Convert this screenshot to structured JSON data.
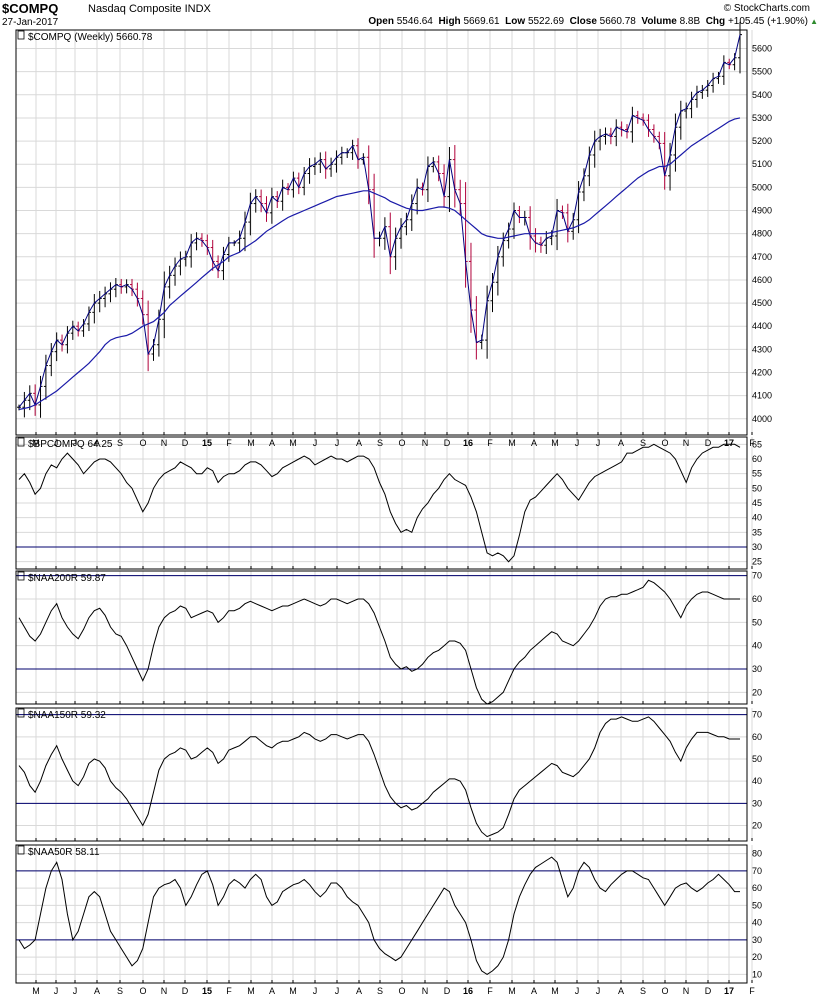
{
  "header": {
    "symbol": "$COMPQ",
    "name": "Nasdaq Composite INDX",
    "date": "27-Jan-2017",
    "copyright": "© StockCharts.com",
    "open_label": "Open",
    "open": "5546.64",
    "high_label": "High",
    "high": "5669.61",
    "low_label": "Low",
    "low": "5522.69",
    "close_label": "Close",
    "close": "5660.78",
    "volume_label": "Volume",
    "volume": "8.8B",
    "chg_label": "Chg",
    "chg": "+105.45 (+1.90%)",
    "up_arrow_icon": "up-triangle-icon"
  },
  "colors": {
    "price": "#000000",
    "close_line": "#00007f",
    "moving_average": "#1a1aa8",
    "down_bar": "#b0003a",
    "grid": "#d9d9d9",
    "reference_line": "#00006e",
    "up_arrow": "#2e8b2e"
  },
  "chart_data": [
    {
      "type": "line",
      "panel": "price",
      "label": "$COMPQ (Weekly) 5660.78",
      "x_tick_labels": [
        "M",
        "J",
        "J",
        "A",
        "S",
        "O",
        "N",
        "D",
        "15",
        "F",
        "M",
        "A",
        "M",
        "J",
        "J",
        "A",
        "S",
        "O",
        "N",
        "D",
        "16",
        "F",
        "M",
        "A",
        "M",
        "J",
        "J",
        "A",
        "S",
        "O",
        "N",
        "D",
        "17",
        "F"
      ],
      "y_ticks": [
        4000,
        4100,
        4200,
        4300,
        4400,
        4500,
        4600,
        4700,
        4800,
        4900,
        5000,
        5100,
        5200,
        5300,
        5400,
        5500,
        5600
      ],
      "ylim": [
        3930,
        5680
      ],
      "grid": true,
      "series": [
        {
          "values": [
            4050,
            4080,
            4110,
            4060,
            4140,
            4230,
            4290,
            4340,
            4320,
            4370,
            4400,
            4380,
            4410,
            4460,
            4500,
            4520,
            4540,
            4560,
            4580,
            4570,
            4580,
            4560,
            4520,
            4450,
            4280,
            4320,
            4430,
            4570,
            4620,
            4660,
            4690,
            4700,
            4760,
            4780,
            4770,
            4740,
            4680,
            4640,
            4710,
            4760,
            4760,
            4780,
            4850,
            4930,
            4960,
            4930,
            4890,
            4960,
            4940,
            5000,
            4990,
            5040,
            5000,
            5060,
            5090,
            5100,
            5120,
            5080,
            5100,
            5130,
            5150,
            5150,
            5180,
            5120,
            5130,
            4990,
            4780,
            4780,
            4830,
            4700,
            4780,
            4830,
            4860,
            4930,
            5000,
            4990,
            5090,
            5110,
            5060,
            4960,
            5120,
            4990,
            4930,
            4680,
            4470,
            4330,
            4340,
            4510,
            4590,
            4700,
            4770,
            4820,
            4900,
            4870,
            4870,
            4790,
            4760,
            4750,
            4780,
            4790,
            4900,
            4890,
            4810,
            4860,
            4980,
            5050,
            5140,
            5200,
            5220,
            5230,
            5220,
            5260,
            5250,
            5240,
            5310,
            5300,
            5290,
            5250,
            5220,
            5190,
            5050,
            5140,
            5260,
            5330,
            5340,
            5380,
            5410,
            5420,
            5440,
            5470,
            5480,
            5540,
            5530,
            5560,
            5660
          ]
        },
        {
          "values": [
            4040,
            4045,
            4050,
            4060,
            4075,
            4090,
            4105,
            4120,
            4140,
            4160,
            4180,
            4200,
            4220,
            4240,
            4265,
            4290,
            4320,
            4340,
            4350,
            4355,
            4360,
            4370,
            4385,
            4400,
            4410,
            4420,
            4440,
            4460,
            4490,
            4510,
            4530,
            4550,
            4570,
            4590,
            4610,
            4630,
            4650,
            4665,
            4680,
            4700,
            4710,
            4720,
            4740,
            4755,
            4770,
            4790,
            4810,
            4825,
            4840,
            4855,
            4870,
            4880,
            4890,
            4900,
            4910,
            4920,
            4930,
            4940,
            4950,
            4960,
            4965,
            4970,
            4975,
            4980,
            4985,
            4985,
            4975,
            4965,
            4955,
            4940,
            4930,
            4920,
            4910,
            4905,
            4900,
            4900,
            4905,
            4910,
            4915,
            4915,
            4910,
            4900,
            4880,
            4860,
            4840,
            4820,
            4800,
            4790,
            4785,
            4780,
            4780,
            4785,
            4790,
            4795,
            4800,
            4800,
            4800,
            4800,
            4800,
            4805,
            4810,
            4815,
            4820,
            4825,
            4835,
            4845,
            4860,
            4880,
            4900,
            4920,
            4940,
            4960,
            4980,
            5000,
            5020,
            5040,
            5055,
            5070,
            5080,
            5090,
            5090,
            5100,
            5120,
            5140,
            5160,
            5180,
            5195,
            5210,
            5225,
            5240,
            5255,
            5270,
            5285,
            5295,
            5300
          ]
        }
      ]
    },
    {
      "type": "line",
      "panel": "indicator",
      "label": "$BPCOMPQ 64.25",
      "y_ticks": [
        25,
        30,
        35,
        40,
        45,
        50,
        55,
        60,
        65
      ],
      "ylim": [
        22.5,
        67.5
      ],
      "reference_lines": [
        30
      ],
      "grid": true,
      "values": [
        53,
        55,
        52,
        48,
        50,
        55,
        58,
        57,
        60,
        62,
        60,
        58,
        55,
        57,
        59,
        60,
        60,
        59,
        57,
        55,
        52,
        50,
        46,
        42,
        45,
        50,
        53,
        55,
        56,
        57,
        59,
        58,
        57,
        55,
        55,
        57,
        56,
        52,
        54,
        55,
        55,
        56,
        58,
        59,
        59,
        58,
        56,
        54,
        55,
        57,
        58,
        59,
        60,
        61,
        60,
        58,
        59,
        60,
        61,
        60,
        60,
        59,
        60,
        61,
        61,
        60,
        57,
        52,
        48,
        42,
        38,
        35,
        36,
        35,
        40,
        43,
        45,
        48,
        50,
        53,
        55,
        53,
        52,
        51,
        47,
        42,
        35,
        28,
        27,
        28,
        27,
        25,
        27,
        34,
        42,
        46,
        47,
        49,
        51,
        53,
        55,
        53,
        50,
        48,
        46,
        49,
        52,
        54,
        55,
        56,
        57,
        58,
        59,
        62,
        62,
        63,
        64,
        64,
        65,
        64,
        63,
        62,
        60,
        56,
        52,
        57,
        60,
        62,
        63,
        64,
        64,
        65,
        65,
        65,
        64
      ]
    },
    {
      "type": "line",
      "panel": "indicator",
      "label": "$NAA200R 59.87",
      "y_ticks": [
        20,
        30,
        40,
        50,
        60,
        70
      ],
      "ylim": [
        15,
        72
      ],
      "reference_lines": [
        30,
        70
      ],
      "grid": true,
      "values": [
        52,
        48,
        44,
        42,
        45,
        50,
        55,
        58,
        52,
        48,
        45,
        43,
        47,
        52,
        55,
        56,
        53,
        48,
        45,
        44,
        40,
        35,
        30,
        25,
        30,
        40,
        48,
        52,
        54,
        55,
        57,
        56,
        52,
        53,
        54,
        55,
        54,
        50,
        52,
        55,
        55,
        56,
        58,
        59,
        58,
        57,
        56,
        55,
        56,
        57,
        57,
        58,
        59,
        60,
        59,
        58,
        57,
        58,
        60,
        60,
        59,
        58,
        59,
        60,
        60,
        58,
        54,
        48,
        42,
        35,
        32,
        30,
        31,
        29,
        30,
        32,
        35,
        37,
        38,
        40,
        42,
        42,
        41,
        38,
        30,
        22,
        17,
        15,
        16,
        18,
        20,
        25,
        30,
        33,
        35,
        38,
        40,
        42,
        44,
        46,
        45,
        42,
        41,
        40,
        42,
        45,
        48,
        52,
        57,
        60,
        61,
        61,
        62,
        62,
        63,
        64,
        65,
        68,
        67,
        65,
        63,
        60,
        56,
        52,
        57,
        60,
        62,
        63,
        63,
        62,
        61,
        60,
        60,
        60,
        60
      ]
    },
    {
      "type": "line",
      "panel": "indicator",
      "label": "$NAA150R 59.32",
      "y_ticks": [
        20,
        30,
        40,
        50,
        60,
        70
      ],
      "ylim": [
        13,
        73
      ],
      "reference_lines": [
        30,
        70
      ],
      "grid": true,
      "values": [
        47,
        44,
        38,
        35,
        40,
        47,
        52,
        56,
        50,
        45,
        40,
        38,
        42,
        48,
        50,
        49,
        46,
        40,
        37,
        35,
        32,
        28,
        24,
        20,
        25,
        35,
        45,
        50,
        52,
        53,
        55,
        54,
        50,
        51,
        53,
        55,
        53,
        48,
        50,
        54,
        55,
        56,
        58,
        60,
        60,
        58,
        56,
        55,
        57,
        58,
        58,
        59,
        60,
        62,
        61,
        59,
        58,
        59,
        61,
        61,
        60,
        59,
        60,
        61,
        61,
        58,
        52,
        45,
        38,
        33,
        30,
        28,
        29,
        27,
        28,
        30,
        32,
        35,
        37,
        39,
        41,
        41,
        40,
        36,
        28,
        21,
        17,
        15,
        16,
        17,
        19,
        25,
        32,
        36,
        38,
        40,
        42,
        44,
        46,
        48,
        47,
        44,
        43,
        42,
        44,
        47,
        50,
        55,
        62,
        66,
        68,
        68,
        69,
        68,
        67,
        67,
        68,
        69,
        67,
        64,
        61,
        58,
        53,
        49,
        55,
        59,
        62,
        62,
        62,
        61,
        60,
        60,
        59,
        59,
        59
      ]
    },
    {
      "type": "line",
      "panel": "indicator",
      "label": "$NAA50R 58.11",
      "y_ticks": [
        10,
        20,
        30,
        40,
        50,
        60,
        70,
        80
      ],
      "ylim": [
        5,
        85
      ],
      "reference_lines": [
        30,
        70
      ],
      "grid": true,
      "values": [
        30,
        25,
        27,
        30,
        45,
        60,
        70,
        75,
        65,
        45,
        30,
        35,
        45,
        55,
        58,
        55,
        45,
        35,
        30,
        25,
        20,
        15,
        18,
        25,
        40,
        55,
        60,
        62,
        63,
        65,
        60,
        50,
        55,
        62,
        68,
        70,
        62,
        50,
        55,
        62,
        65,
        63,
        60,
        65,
        68,
        65,
        55,
        50,
        52,
        58,
        60,
        62,
        63,
        65,
        62,
        58,
        55,
        58,
        63,
        63,
        60,
        55,
        52,
        50,
        45,
        40,
        30,
        25,
        22,
        20,
        18,
        20,
        25,
        30,
        35,
        40,
        45,
        50,
        55,
        60,
        58,
        50,
        45,
        40,
        30,
        18,
        12,
        10,
        12,
        15,
        20,
        30,
        45,
        55,
        62,
        68,
        72,
        74,
        76,
        78,
        75,
        65,
        55,
        60,
        70,
        75,
        72,
        65,
        60,
        58,
        62,
        65,
        68,
        70,
        70,
        68,
        66,
        65,
        60,
        55,
        50,
        55,
        60,
        62,
        63,
        60,
        58,
        60,
        63,
        65,
        68,
        65,
        62,
        58,
        58
      ]
    }
  ]
}
